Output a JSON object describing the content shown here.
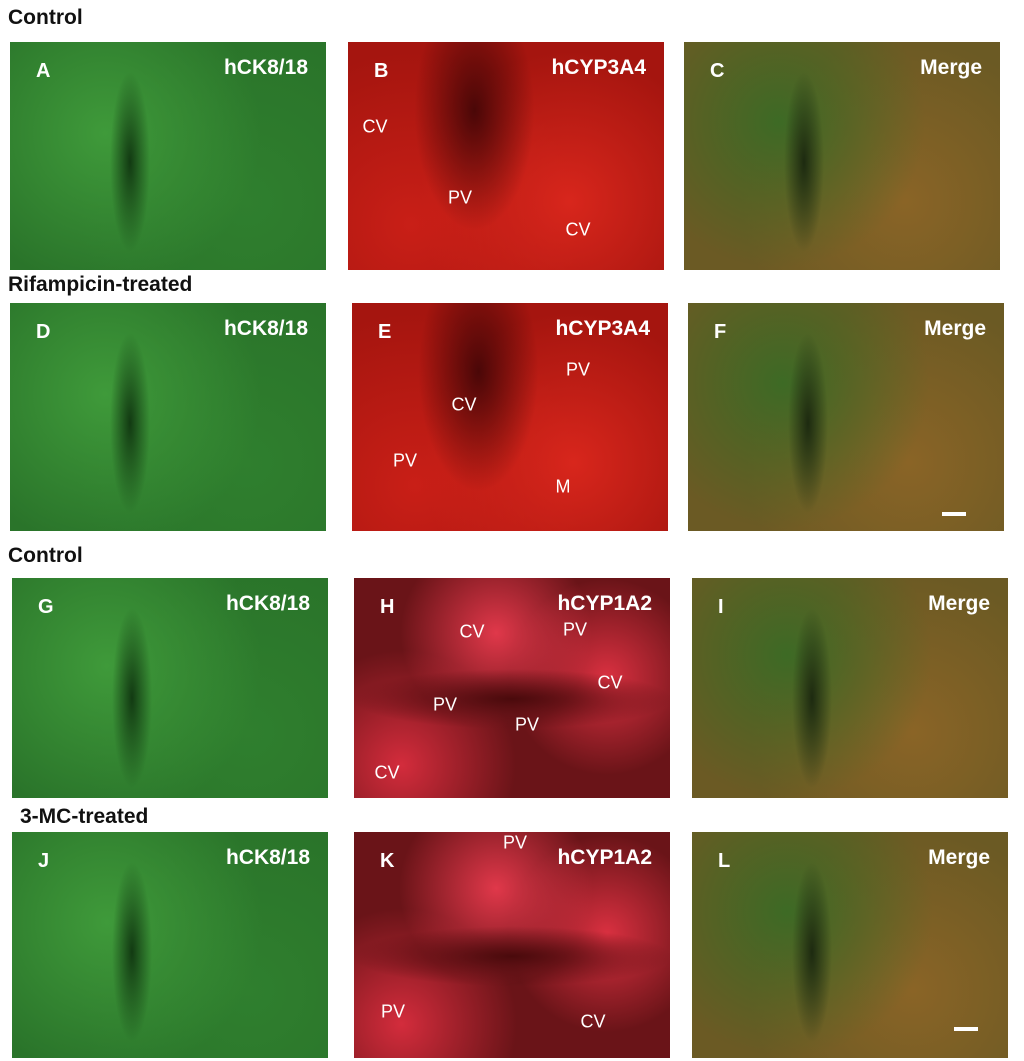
{
  "sections": [
    {
      "title": "Control",
      "panels": [
        {
          "letter": "A",
          "stain": "hCK8/18"
        },
        {
          "letter": "B",
          "stain": "hCYP3A4",
          "regions": [
            "CV",
            "PV",
            "CV"
          ]
        },
        {
          "letter": "C",
          "stain": "Merge"
        }
      ]
    },
    {
      "title": "Rifampicin-treated",
      "panels": [
        {
          "letter": "D",
          "stain": "hCK8/18"
        },
        {
          "letter": "E",
          "stain": "hCYP3A4",
          "regions": [
            "PV",
            "CV",
            "PV",
            "M"
          ]
        },
        {
          "letter": "F",
          "stain": "Merge"
        }
      ]
    },
    {
      "title": "Control",
      "panels": [
        {
          "letter": "G",
          "stain": "hCK8/18"
        },
        {
          "letter": "H",
          "stain": "hCYP1A2",
          "regions": [
            "CV",
            "PV",
            "CV",
            "PV",
            "PV",
            "CV"
          ]
        },
        {
          "letter": "I",
          "stain": "Merge"
        }
      ]
    },
    {
      "title": "3-MC-treated",
      "panels": [
        {
          "letter": "J",
          "stain": "hCK8/18"
        },
        {
          "letter": "K",
          "stain": "hCYP1A2",
          "regions": [
            "PV",
            "PV",
            "CV"
          ]
        },
        {
          "letter": "L",
          "stain": "Merge"
        }
      ]
    }
  ]
}
